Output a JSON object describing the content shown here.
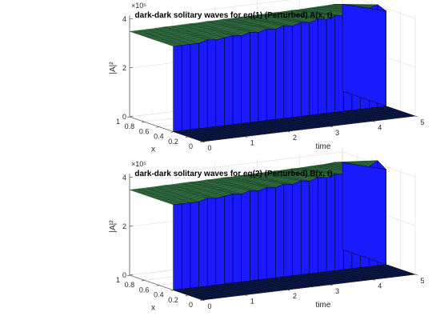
{
  "chart_data": [
    {
      "type": "surface",
      "title": "dark-dark solitary waves for eq(1) (Perturbed) A(x, t)",
      "xlabel": "time",
      "ylabel": "x",
      "zlabel": "|A|²",
      "z_exponent": "×10⁵",
      "xlim": [
        0,
        5
      ],
      "ylim": [
        0,
        1
      ],
      "zlim": [
        0,
        4
      ],
      "xticks": [
        "0",
        "1",
        "2",
        "3",
        "4",
        "5"
      ],
      "yticks": [
        "0",
        "0.2",
        "0.4",
        "0.6",
        "0.8",
        "1"
      ],
      "zticks": [
        "0",
        "2",
        "4"
      ],
      "plateau_value": 3.5,
      "low_value": 0.0,
      "step_at_x": 0.4,
      "plateau_profile": [
        3.5,
        3.5,
        3.5,
        3.5,
        3.6,
        3.55,
        3.6,
        3.65,
        3.6,
        3.7,
        3.65,
        3.75,
        3.7,
        3.8,
        3.75,
        3.85,
        3.8,
        3.9,
        3.85,
        3.95,
        3.9,
        4.0,
        4.05,
        4.1,
        4.2,
        3.9
      ]
    },
    {
      "type": "surface",
      "title": "dark-dark solitary waves for eq(2) (Perturbed) B(x, t)",
      "xlabel": "time",
      "ylabel": "x",
      "zlabel": "|A|²",
      "z_exponent": "×10⁵",
      "xlim": [
        0,
        5
      ],
      "ylim": [
        0,
        1
      ],
      "zlim": [
        0,
        4
      ],
      "xticks": [
        "0",
        "1",
        "2",
        "3",
        "4",
        "5"
      ],
      "yticks": [
        "0",
        "0.2",
        "0.4",
        "0.6",
        "0.8",
        "1"
      ],
      "zticks": [
        "0",
        "2",
        "4"
      ],
      "plateau_value": 3.5,
      "low_value": 0.0,
      "step_at_x": 0.4,
      "plateau_profile": [
        3.5,
        3.5,
        3.5,
        3.5,
        3.6,
        3.55,
        3.6,
        3.65,
        3.6,
        3.7,
        3.65,
        3.75,
        3.7,
        3.8,
        3.75,
        3.85,
        3.8,
        3.9,
        3.85,
        3.95,
        3.9,
        4.0,
        4.05,
        4.1,
        4.3,
        3.9
      ]
    }
  ],
  "colors": {
    "wall": "#1a1aff",
    "plateau": "#2f6b3f",
    "floor": "#0c1a4d",
    "mesh": "#000000"
  }
}
